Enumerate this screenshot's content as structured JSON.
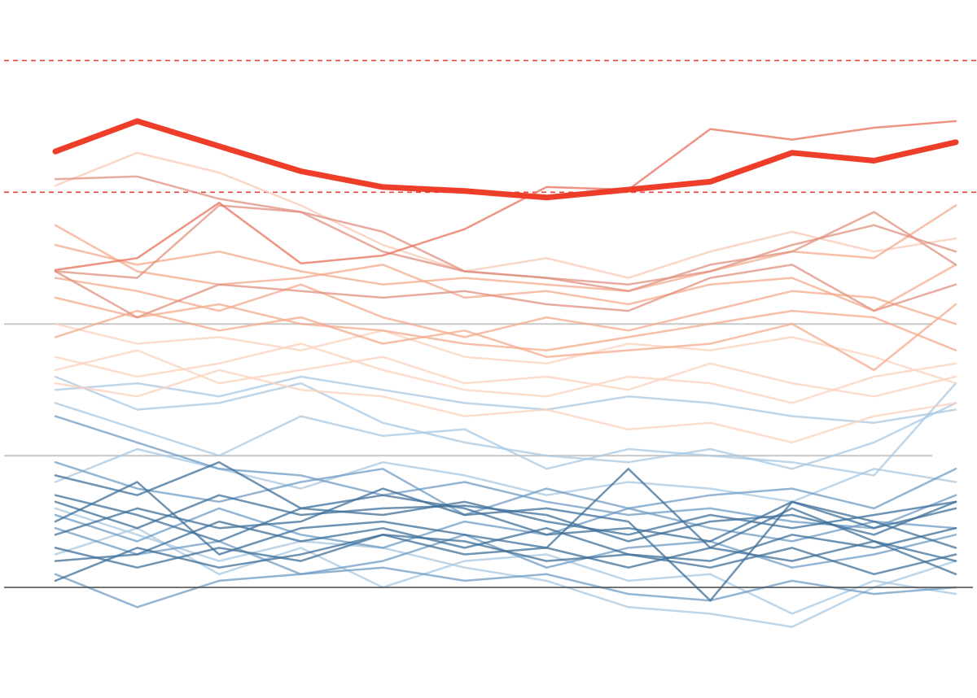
{
  "chart_data": {
    "type": "line",
    "categories": [
      null,
      null,
      null,
      null,
      null,
      null,
      null,
      null,
      null,
      null,
      null,
      null
    ],
    "ylim": [
      -0.84,
      4.46
    ],
    "yticks": [
      1,
      2
    ],
    "grid": true,
    "baseline": 0,
    "threshold_lines": [
      3,
      4
    ],
    "series": [
      {
        "color": "#a9c8e2",
        "values": [
          1.6,
          1.35,
          1.4,
          1.55,
          1.25,
          1.1,
          1.0,
          0.95,
          1.05,
          0.9,
          1.1,
          1.4
        ]
      },
      {
        "color": "#a9c8e2",
        "values": [
          1.4,
          1.2,
          1.0,
          1.3,
          1.15,
          1.2,
          0.9,
          1.05,
          1.0,
          0.95,
          0.85,
          1.55
        ]
      },
      {
        "color": "#a9c8e2",
        "values": [
          0.6,
          0.4,
          0.2,
          0.35,
          0.3,
          0.15,
          0.05,
          -0.15,
          -0.2,
          -0.3,
          0.0,
          0.2
        ]
      },
      {
        "color": "#a9c8e2",
        "values": [
          0.8,
          1.05,
          0.9,
          0.75,
          0.95,
          0.85,
          0.7,
          0.8,
          0.75,
          0.65,
          0.9,
          0.8
        ]
      },
      {
        "color": "#a9c8e2",
        "values": [
          0.25,
          0.45,
          0.1,
          0.3,
          0.0,
          0.2,
          0.25,
          0.05,
          0.1,
          -0.2,
          0.05,
          -0.05
        ]
      },
      {
        "color": "#a9c8e2",
        "values": [
          1.5,
          1.55,
          1.45,
          1.6,
          1.5,
          1.4,
          1.35,
          1.45,
          1.4,
          1.3,
          1.25,
          1.35
        ]
      },
      {
        "color": "#fbd2bc",
        "values": [
          1.55,
          1.45,
          1.65,
          1.5,
          1.45,
          1.3,
          1.35,
          1.2,
          1.25,
          1.1,
          1.3,
          1.4
        ]
      },
      {
        "color": "#fbd2bc",
        "values": [
          1.75,
          1.6,
          1.7,
          1.85,
          1.65,
          1.5,
          1.45,
          1.6,
          1.55,
          1.4,
          1.6,
          1.7
        ]
      },
      {
        "color": "#fbd2bc",
        "values": [
          2.0,
          1.85,
          1.9,
          1.8,
          1.95,
          1.75,
          1.7,
          1.85,
          1.8,
          1.9,
          1.75,
          1.55
        ]
      },
      {
        "color": "#fbd2bc",
        "values": [
          1.65,
          1.8,
          1.55,
          1.65,
          1.75,
          1.55,
          1.6,
          1.5,
          1.7,
          1.55,
          1.45,
          1.6
        ]
      },
      {
        "color": "#f8c9b6",
        "values": [
          3.05,
          3.3,
          3.15,
          2.9,
          2.6,
          2.4,
          2.5,
          2.35,
          2.55,
          2.7,
          2.55,
          2.65
        ]
      },
      {
        "color": "#f4a98a",
        "values": [
          2.2,
          2.05,
          2.15,
          2.0,
          1.95,
          1.85,
          1.8,
          1.9,
          2.0,
          2.1,
          2.05,
          1.8
        ]
      },
      {
        "color": "#f4a98a",
        "values": [
          1.9,
          2.1,
          1.95,
          2.05,
          1.85,
          1.95,
          1.75,
          1.8,
          1.85,
          2.0,
          1.65,
          2.15
        ]
      },
      {
        "color": "#f4a98a",
        "values": [
          2.35,
          2.25,
          2.1,
          2.3,
          2.05,
          1.9,
          2.05,
          1.95,
          2.1,
          2.25,
          2.2,
          2.0
        ]
      },
      {
        "color": "#f4a98a",
        "values": [
          2.6,
          2.45,
          2.55,
          2.4,
          2.3,
          2.35,
          2.3,
          2.25,
          2.4,
          2.55,
          2.5,
          2.9
        ]
      },
      {
        "color": "#f4a98a",
        "values": [
          2.75,
          2.4,
          2.3,
          2.35,
          2.45,
          2.2,
          2.25,
          2.15,
          2.3,
          2.35,
          2.1,
          2.45
        ]
      },
      {
        "color": "#6f9cc4",
        "values": [
          0.95,
          0.75,
          0.65,
          0.8,
          0.9,
          0.55,
          0.75,
          0.6,
          0.7,
          0.75,
          0.6,
          0.9
        ]
      },
      {
        "color": "#6f9cc4",
        "values": [
          0.45,
          0.25,
          0.35,
          0.1,
          0.2,
          0.4,
          0.15,
          0.3,
          0.35,
          0.15,
          0.25,
          0.4
        ]
      },
      {
        "color": "#6f9cc4",
        "values": [
          1.3,
          1.1,
          0.9,
          0.85,
          0.7,
          0.8,
          0.65,
          0.55,
          0.6,
          0.5,
          0.45,
          0.7
        ]
      },
      {
        "color": "#6f9cc4",
        "values": [
          0.1,
          -0.15,
          0.05,
          0.1,
          0.15,
          0.05,
          0.1,
          -0.05,
          -0.1,
          0.05,
          -0.05,
          0.0
        ]
      },
      {
        "color": "#6f9cc4",
        "values": [
          0.55,
          0.35,
          0.6,
          0.4,
          0.3,
          0.5,
          0.4,
          0.6,
          0.45,
          0.35,
          0.5,
          0.45
        ]
      },
      {
        "color": "#3d6f99",
        "values": [
          0.65,
          0.45,
          0.7,
          0.55,
          0.6,
          0.62,
          0.55,
          0.35,
          0.5,
          0.55,
          0.4,
          0.65
        ]
      },
      {
        "color": "#3d6f99",
        "values": [
          0.5,
          0.8,
          0.25,
          0.45,
          0.5,
          0.4,
          0.3,
          0.9,
          0.3,
          0.6,
          0.35,
          0.2
        ]
      },
      {
        "color": "#3d6f99",
        "values": [
          0.2,
          0.25,
          0.5,
          0.35,
          0.45,
          0.3,
          0.45,
          0.25,
          0.2,
          0.4,
          0.3,
          0.45
        ]
      },
      {
        "color": "#3d6f99",
        "values": [
          0.85,
          0.7,
          0.95,
          0.6,
          0.7,
          0.6,
          0.4,
          0.45,
          0.35,
          0.65,
          0.5,
          0.3
        ]
      },
      {
        "color": "#3d6f99",
        "values": [
          0.4,
          0.6,
          0.45,
          0.5,
          0.75,
          0.55,
          0.6,
          0.5,
          -0.1,
          0.65,
          0.45,
          0.6
        ]
      },
      {
        "color": "#3d6f99",
        "values": [
          0.05,
          0.3,
          0.15,
          0.25,
          0.4,
          0.35,
          0.2,
          0.25,
          0.15,
          0.3,
          0.1,
          0.25
        ]
      },
      {
        "color": "#3d6f99",
        "values": [
          0.7,
          0.55,
          0.35,
          0.6,
          0.55,
          0.65,
          0.5,
          0.4,
          0.55,
          0.45,
          0.55,
          0.65
        ]
      },
      {
        "color": "#3d6f99",
        "values": [
          0.3,
          0.15,
          0.3,
          0.2,
          0.4,
          0.25,
          0.3,
          0.15,
          0.3,
          0.2,
          0.35,
          0.1
        ]
      },
      {
        "color": "#e0907f",
        "values": [
          3.1,
          3.12,
          2.95,
          2.85,
          2.7,
          2.4,
          2.35,
          2.25,
          2.45,
          2.55,
          2.85,
          2.45
        ]
      },
      {
        "color": "#e0907f",
        "values": [
          2.4,
          2.35,
          2.9,
          2.85,
          2.55,
          2.4,
          2.35,
          2.3,
          2.4,
          2.6,
          2.75,
          2.55
        ]
      },
      {
        "color": "#e0907f",
        "values": [
          2.4,
          2.05,
          2.3,
          2.25,
          2.2,
          2.25,
          2.15,
          2.1,
          2.35,
          2.45,
          2.1,
          2.3
        ]
      },
      {
        "color": "#e8705a",
        "values": [
          2.41,
          2.5,
          2.92,
          2.46,
          2.52,
          2.72,
          3.04,
          3.02,
          3.48,
          3.4,
          3.49,
          3.54
        ]
      },
      {
        "color": "#ee3e2a",
        "highlight": true,
        "values": [
          3.31,
          3.54,
          3.35,
          3.16,
          3.04,
          3.01,
          2.96,
          3.02,
          3.08,
          3.3,
          3.24,
          3.38
        ]
      }
    ]
  }
}
